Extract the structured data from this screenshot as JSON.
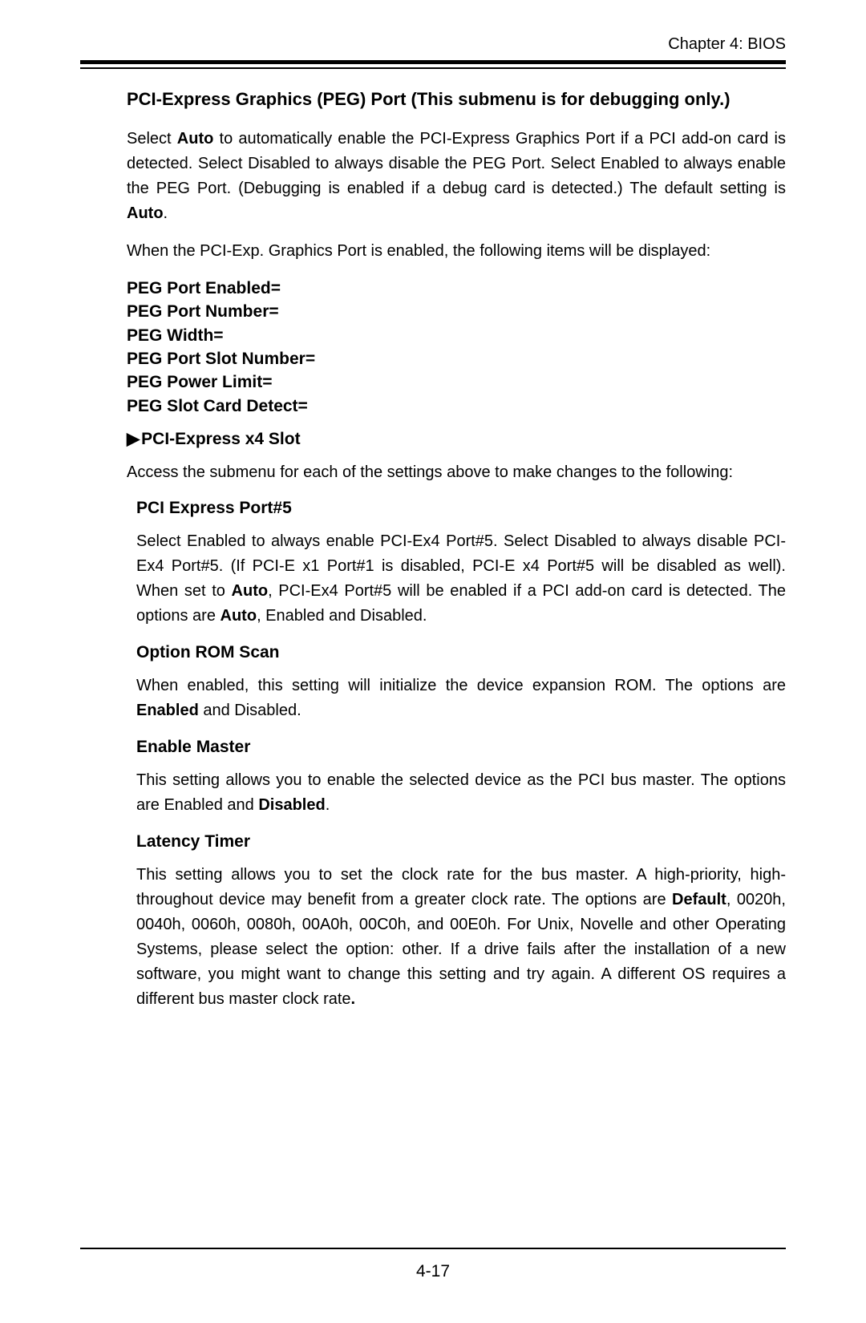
{
  "header": {
    "chapter": "Chapter 4: BIOS"
  },
  "peg": {
    "title": "PCI-Express Graphics (PEG) Port (This submenu is for debugging only.)",
    "p1_a": "Select ",
    "p1_b_bold": "Auto",
    "p1_c": " to automatically enable the PCI-Express Graphics Port if a PCI add-on card is detected. Select Disabled to always disable the PEG Port. Select Enabled to always enable the PEG Port. (Debugging is enabled if a debug card is detected.) The default setting is ",
    "p1_d_bold": "Auto",
    "p1_e": ".",
    "p2": "When the PCI-Exp. Graphics Port is enabled, the following items will be displayed:",
    "list1": "PEG Port Enabled=",
    "list2": "PEG Port Number=",
    "list3": "PEG Width=",
    "list4": "PEG Port Slot Number=",
    "list5": "PEG Power Limit=",
    "list6": "PEG Slot Card Detect="
  },
  "x4slot": {
    "title": "PCI-Express x4 Slot",
    "p1": "Access the submenu for each of the settings above to make changes to the following:"
  },
  "port5": {
    "title": "PCI Express Port#5",
    "p_a": "Select Enabled to always enable PCI-Ex4 Port#5. Select Disabled to always disable PCI-Ex4 Port#5. (If PCI-E x1 Port#1 is disabled, PCI-E x4 Port#5 will be disabled as well). When set to ",
    "p_b_bold": "Auto",
    "p_c": ", PCI-Ex4 Port#5 will be enabled if a PCI add-on card is detected.  The options are ",
    "p_d_bold": "Auto",
    "p_e": ", Enabled and Disabled."
  },
  "orom": {
    "title": "Option ROM Scan",
    "p_a": "When enabled, this setting will initialize the device expansion ROM.  The options are ",
    "p_b_bold": "Enabled",
    "p_c": " and Disabled."
  },
  "master": {
    "title": "Enable Master",
    "p_a": "This setting allows you to enable the selected device as the PCI bus master. The options are Enabled and ",
    "p_b_bold": "Disabled",
    "p_c": "."
  },
  "latency": {
    "title": "Latency Timer",
    "p_a": "This setting allows you to set the clock rate for the bus master. A high-priority, high-throughout device may benefit from a greater clock rate.  The options are ",
    "p_b_bold": "Default",
    "p_c": ", 0020h, 0040h, 0060h, 0080h, 00A0h, 00C0h, and 00E0h. For Unix, Novelle and other Operating Systems, please select the option: other. If a drive fails after the installation of a  new software, you might want to change this setting and try again. A different OS requires a different bus master clock rate",
    "p_d_bold": "."
  },
  "footer": {
    "pagenum": "4-17"
  },
  "glyphs": {
    "triangle": "▶"
  }
}
